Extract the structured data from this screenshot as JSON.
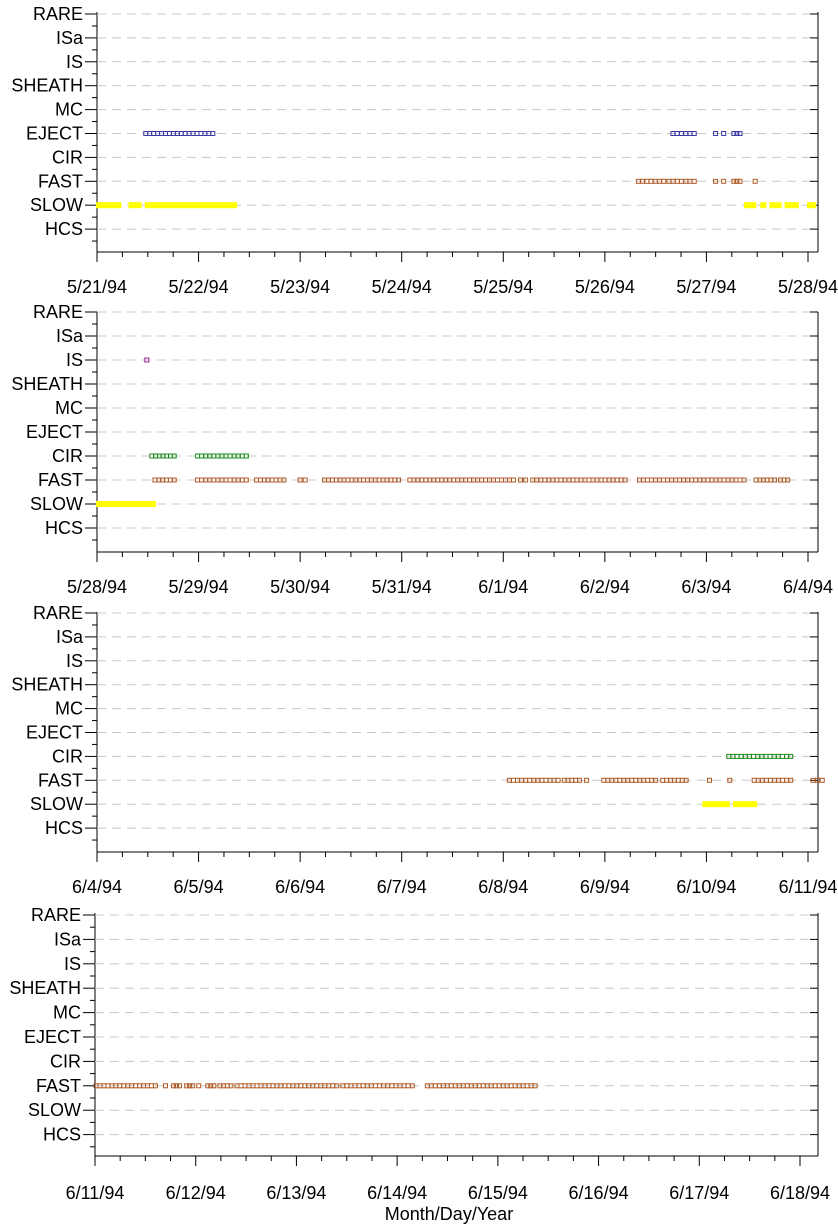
{
  "chart_data": {
    "type": "scatter",
    "categories": [
      "RARE",
      "ISa",
      "IS",
      "SHEATH",
      "MC",
      "EJECT",
      "CIR",
      "FAST",
      "SLOW",
      "HCS"
    ],
    "xlabel": "Month/Day/Year",
    "grid": "horizontal dashed",
    "colors": {
      "EJECT": "#3a3aa6",
      "IS": "#a020a0",
      "CIR": "#1e8a1e",
      "FAST": "#b05a24",
      "SLOW": "#ffff00"
    },
    "panels": [
      {
        "tick_labels": [
          "5/21/94",
          "5/22/94",
          "5/23/94",
          "5/24/94",
          "5/25/94",
          "5/26/94",
          "5/27/94",
          "5/28/94"
        ],
        "xlim": [
          0,
          7
        ],
        "series": [
          {
            "category": "EJECT",
            "segments": [
              [
                0.48,
                1.14
              ],
              [
                5.67,
                5.88
              ],
              [
                6.09,
                6.09
              ],
              [
                6.17,
                6.17
              ],
              [
                6.27,
                6.33
              ]
            ]
          },
          {
            "category": "FAST",
            "segments": [
              [
                5.33,
                5.58
              ],
              [
                5.63,
                5.88
              ],
              [
                6.09,
                6.09
              ],
              [
                6.17,
                6.17
              ],
              [
                6.27,
                6.33
              ],
              [
                6.48,
                6.48
              ]
            ]
          },
          {
            "category": "SLOW",
            "style": "bar",
            "segments": [
              [
                0.0,
                0.23
              ],
              [
                0.32,
                0.43
              ],
              [
                0.48,
                1.37
              ],
              [
                6.38,
                6.48
              ],
              [
                6.54,
                6.58
              ],
              [
                6.63,
                6.73
              ],
              [
                6.78,
                6.9
              ],
              [
                7.0,
                7.07
              ]
            ]
          }
        ]
      },
      {
        "tick_labels": [
          "5/28/94",
          "5/29/94",
          "5/30/94",
          "5/31/94",
          "6/1/94",
          "6/2/94",
          "6/3/94",
          "6/4/94"
        ],
        "xlim": [
          0,
          7
        ],
        "series": [
          {
            "category": "IS",
            "segments": [
              [
                0.49,
                0.49
              ]
            ]
          },
          {
            "category": "CIR",
            "segments": [
              [
                0.54,
                0.76
              ],
              [
                0.99,
                1.47
              ]
            ]
          },
          {
            "category": "FAST",
            "segments": [
              [
                0.57,
                0.76
              ],
              [
                0.99,
                1.47
              ],
              [
                1.57,
                1.84
              ],
              [
                2.0,
                2.05
              ],
              [
                2.24,
                2.97
              ],
              [
                3.08,
                4.1
              ],
              [
                4.17,
                4.22
              ],
              [
                4.29,
                5.2
              ],
              [
                5.34,
                6.37
              ],
              [
                6.49,
                6.67
              ],
              [
                6.73,
                6.8
              ]
            ]
          },
          {
            "category": "SLOW",
            "style": "bar",
            "segments": [
              [
                0.0,
                0.57
              ]
            ]
          }
        ]
      },
      {
        "tick_labels": [
          "6/4/94",
          "6/5/94",
          "6/6/94",
          "6/7/94",
          "6/8/94",
          "6/9/94",
          "6/10/94",
          "6/11/94"
        ],
        "xlim": [
          0,
          7
        ],
        "series": [
          {
            "category": "CIR",
            "segments": [
              [
                6.22,
                6.83
              ]
            ]
          },
          {
            "category": "FAST",
            "segments": [
              [
                4.06,
                4.54
              ],
              [
                4.6,
                4.75
              ],
              [
                4.82,
                4.82
              ],
              [
                4.99,
                5.5
              ],
              [
                5.57,
                5.8
              ],
              [
                6.03,
                6.03
              ],
              [
                6.23,
                6.23
              ],
              [
                6.47,
                6.83
              ],
              [
                7.05,
                7.14
              ]
            ]
          },
          {
            "category": "SLOW",
            "style": "bar",
            "segments": [
              [
                5.97,
                6.22
              ],
              [
                6.27,
                6.49
              ]
            ]
          }
        ]
      },
      {
        "tick_labels": [
          "6/11/94",
          "6/12/94",
          "6/13/94",
          "6/14/94",
          "6/15/94",
          "6/16/94",
          "6/17/94",
          "6/18/94"
        ],
        "xlim": [
          0,
          7
        ],
        "series": [
          {
            "category": "FAST",
            "segments": [
              [
                0.01,
                0.6
              ],
              [
                0.7,
                0.7
              ],
              [
                0.78,
                0.84
              ],
              [
                0.91,
                0.97
              ],
              [
                1.03,
                1.03
              ],
              [
                1.12,
                1.18
              ],
              [
                1.24,
                1.35
              ],
              [
                1.41,
                2.4
              ],
              [
                2.46,
                3.15
              ],
              [
                3.3,
                4.37
              ]
            ]
          }
        ]
      }
    ]
  }
}
